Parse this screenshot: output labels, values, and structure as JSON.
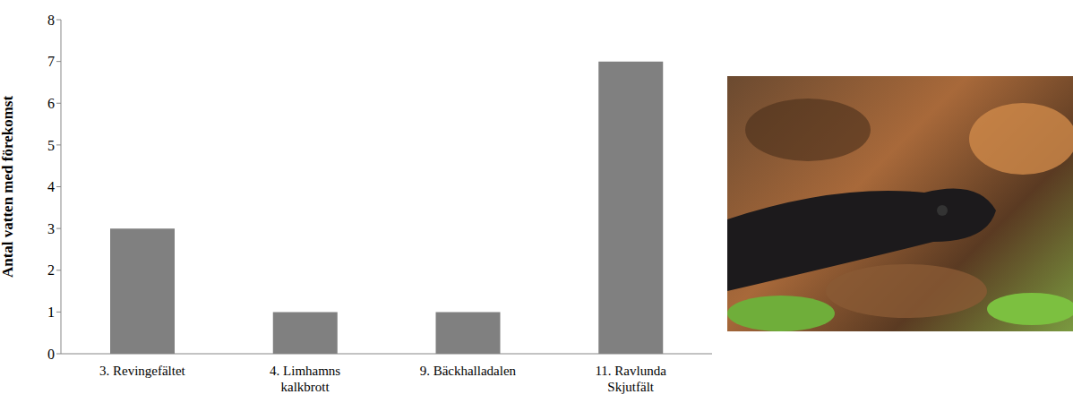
{
  "chart_data": {
    "type": "bar",
    "y_label": "Antal vatten med förekomst",
    "categories": [
      "3. Revingefältet",
      "4. Limhamns kalkbrott",
      "9. Bäckhalladalen",
      "11. Ravlunda Skjutfält"
    ],
    "values": [
      3,
      1,
      1,
      7
    ],
    "color": "#808080",
    "ylim": [
      0,
      8
    ],
    "yticks": [
      0,
      1,
      2,
      3,
      4,
      5,
      6,
      7,
      8
    ],
    "grid": false
  }
}
